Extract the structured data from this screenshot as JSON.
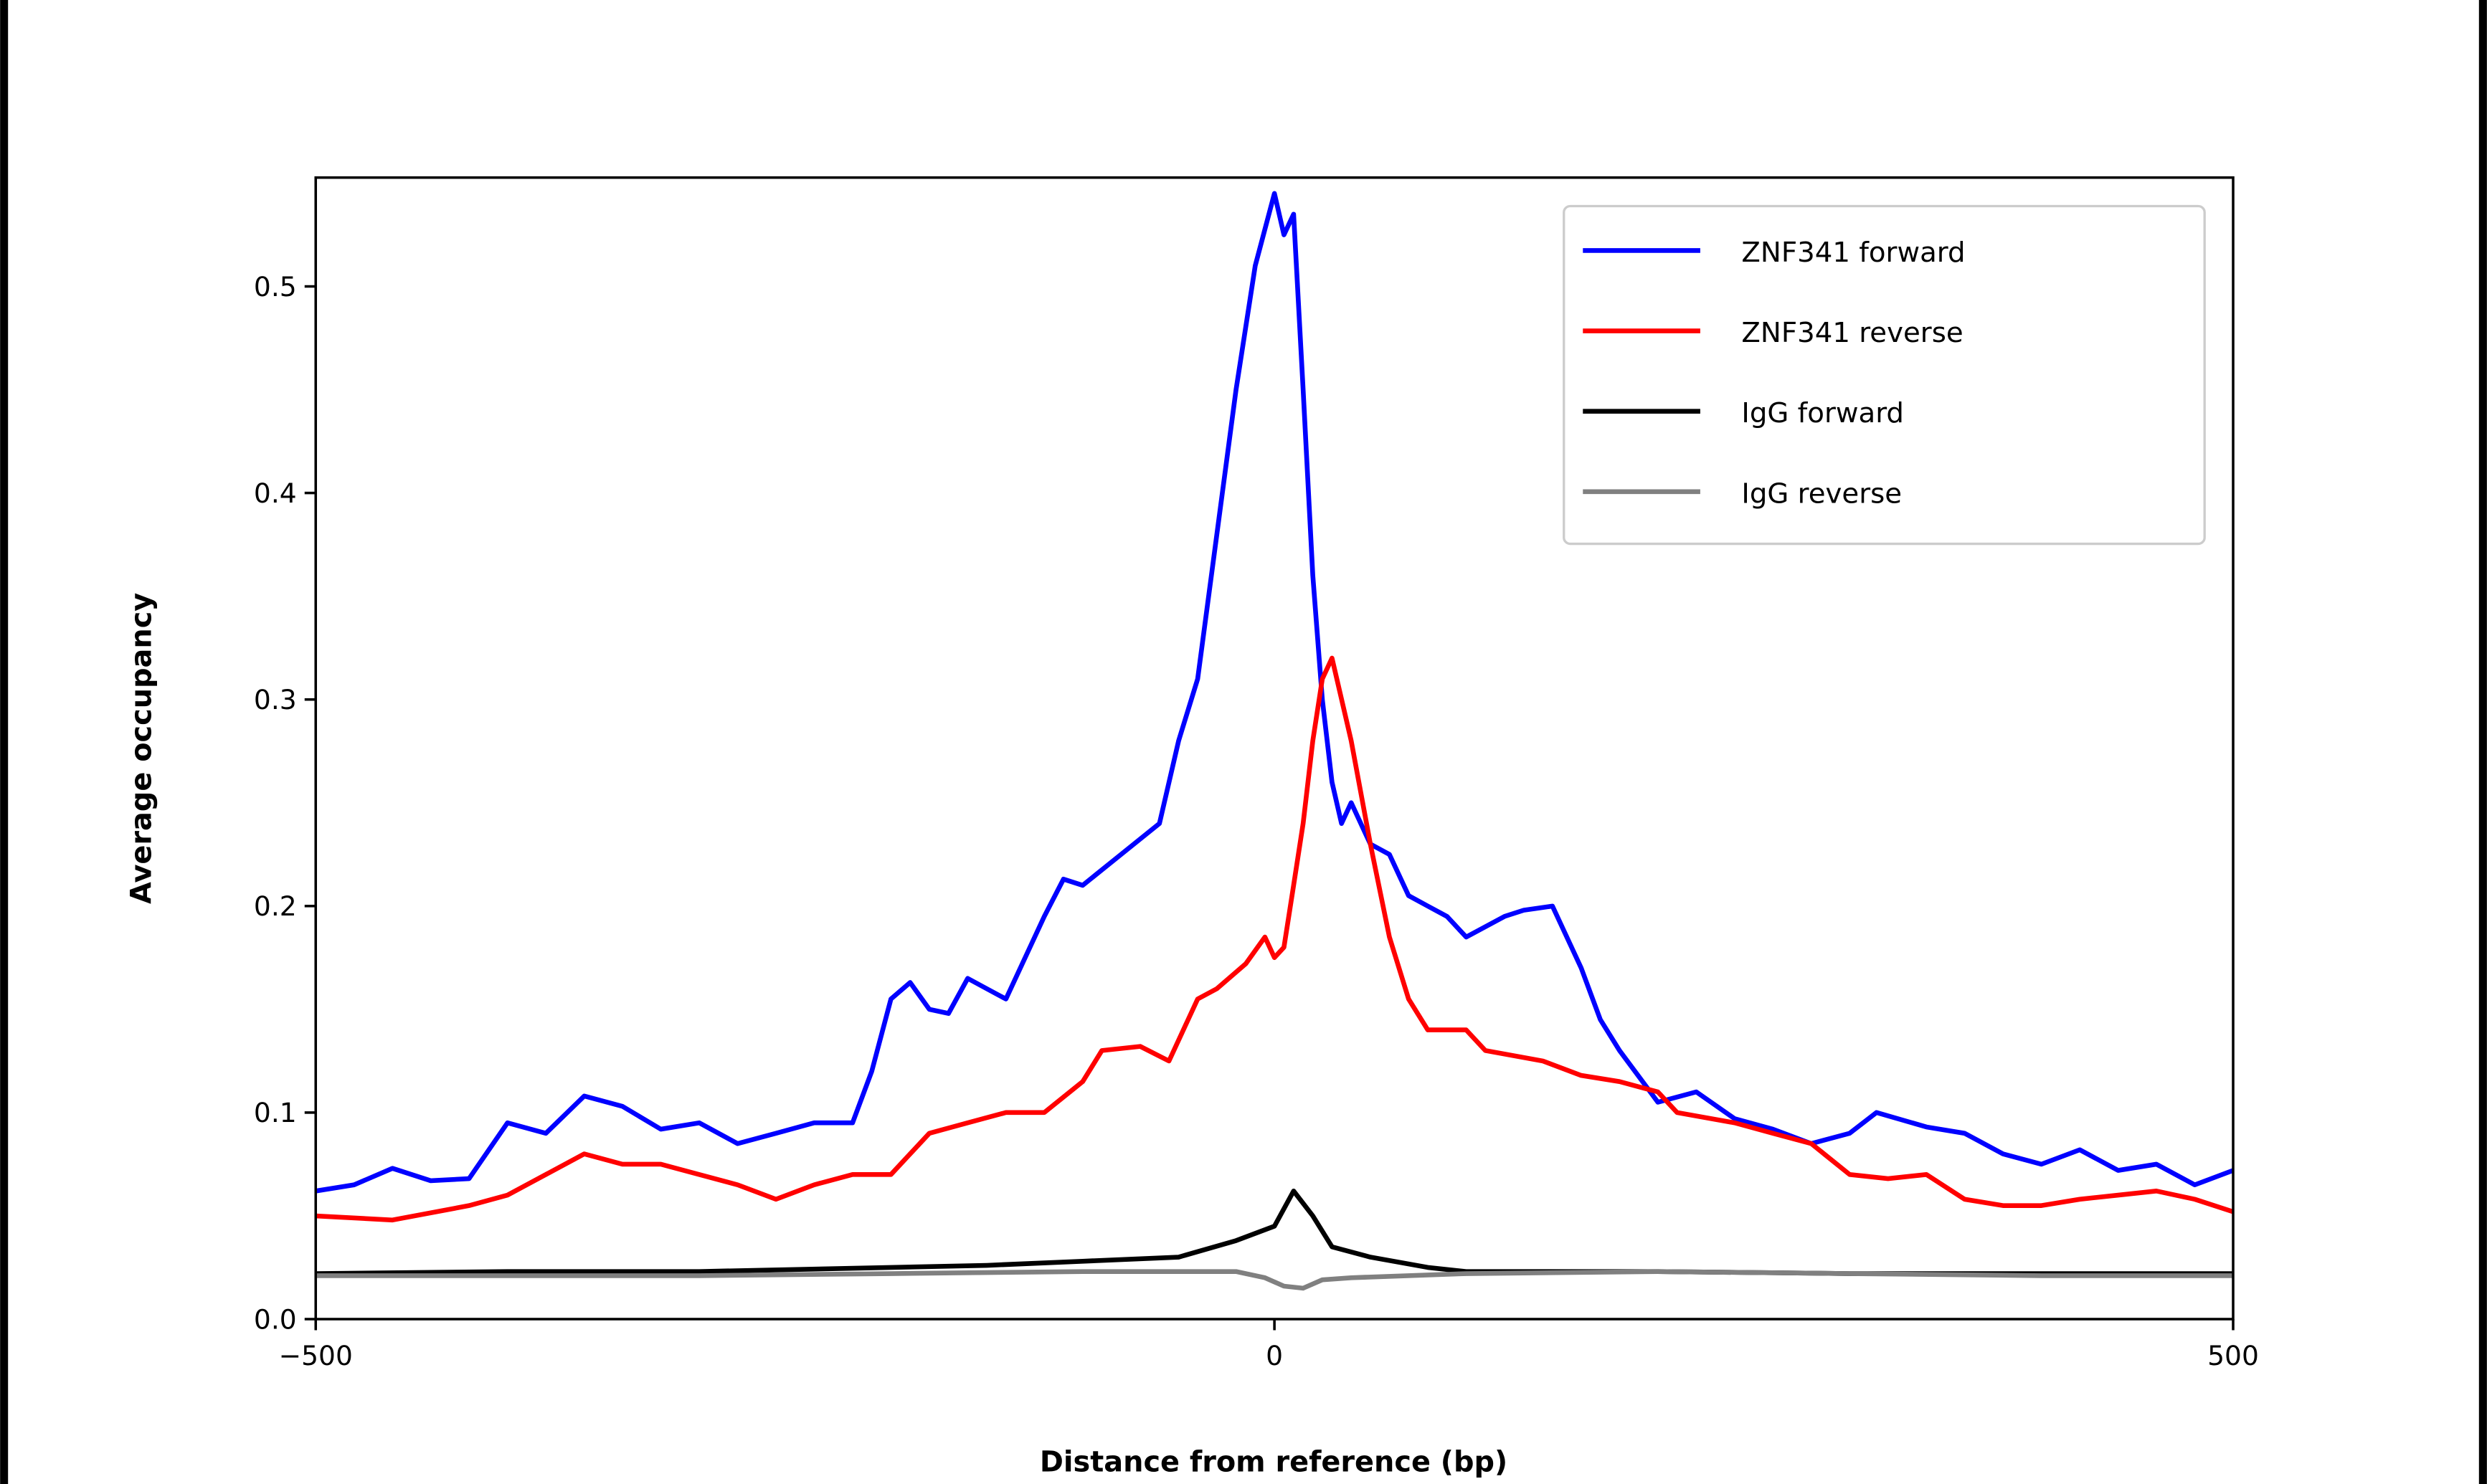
{
  "chart_data": {
    "type": "line",
    "title": "",
    "xlabel": "Distance from reference (bp)",
    "ylabel": "Average occupancy",
    "xlim": [
      -500,
      500
    ],
    "ylim": [
      0,
      0.55
    ],
    "xticks": [
      -500,
      0,
      500
    ],
    "xtick_labels": [
      "−500",
      "0",
      "500"
    ],
    "yticks": [
      0.0,
      0.1,
      0.2,
      0.3,
      0.4,
      0.5
    ],
    "ytick_labels": [
      "0.0",
      "0.1",
      "0.2",
      "0.3",
      "0.4",
      "0.5"
    ],
    "grid": false,
    "legend_position": "top-right",
    "series": [
      {
        "name": "ZNF341 forward",
        "color": "#0000ff",
        "x": [
          -500,
          -480,
          -460,
          -440,
          -420,
          -400,
          -380,
          -360,
          -340,
          -320,
          -300,
          -280,
          -260,
          -240,
          -220,
          -210,
          -200,
          -190,
          -180,
          -170,
          -160,
          -150,
          -140,
          -120,
          -110,
          -100,
          -80,
          -60,
          -50,
          -40,
          -30,
          -20,
          -10,
          0,
          5,
          10,
          15,
          20,
          25,
          30,
          35,
          40,
          50,
          60,
          70,
          80,
          90,
          100,
          110,
          120,
          130,
          145,
          160,
          170,
          180,
          200,
          220,
          240,
          260,
          280,
          300,
          314,
          340,
          360,
          380,
          400,
          420,
          440,
          460,
          480,
          500
        ],
        "y": [
          0.062,
          0.065,
          0.073,
          0.067,
          0.068,
          0.095,
          0.09,
          0.108,
          0.103,
          0.092,
          0.095,
          0.085,
          0.09,
          0.095,
          0.095,
          0.12,
          0.155,
          0.163,
          0.15,
          0.148,
          0.165,
          0.16,
          0.155,
          0.195,
          0.213,
          0.21,
          0.225,
          0.24,
          0.28,
          0.31,
          0.38,
          0.45,
          0.51,
          0.545,
          0.525,
          0.535,
          0.45,
          0.36,
          0.3,
          0.26,
          0.24,
          0.25,
          0.23,
          0.225,
          0.205,
          0.2,
          0.195,
          0.185,
          0.19,
          0.195,
          0.198,
          0.2,
          0.17,
          0.145,
          0.13,
          0.105,
          0.11,
          0.097,
          0.092,
          0.085,
          0.09,
          0.1,
          0.093,
          0.09,
          0.08,
          0.075,
          0.082,
          0.072,
          0.075,
          0.065,
          0.072
        ]
      },
      {
        "name": "ZNF341 reverse",
        "color": "#ff0000",
        "x": [
          -500,
          -460,
          -420,
          -400,
          -380,
          -360,
          -340,
          -320,
          -300,
          -280,
          -260,
          -240,
          -220,
          -200,
          -180,
          -160,
          -140,
          -120,
          -100,
          -90,
          -70,
          -55,
          -40,
          -30,
          -15,
          -5,
          0,
          5,
          10,
          15,
          20,
          25,
          30,
          40,
          50,
          60,
          70,
          80,
          100,
          110,
          140,
          160,
          180,
          200,
          210,
          240,
          260,
          280,
          300,
          320,
          340,
          360,
          380,
          400,
          420,
          440,
          460,
          480,
          500
        ],
        "y": [
          0.05,
          0.048,
          0.055,
          0.06,
          0.07,
          0.08,
          0.075,
          0.075,
          0.07,
          0.065,
          0.058,
          0.065,
          0.07,
          0.07,
          0.09,
          0.095,
          0.1,
          0.1,
          0.115,
          0.13,
          0.132,
          0.125,
          0.155,
          0.16,
          0.172,
          0.185,
          0.175,
          0.18,
          0.21,
          0.24,
          0.28,
          0.31,
          0.32,
          0.28,
          0.23,
          0.185,
          0.155,
          0.14,
          0.14,
          0.13,
          0.125,
          0.118,
          0.115,
          0.11,
          0.1,
          0.095,
          0.09,
          0.085,
          0.07,
          0.068,
          0.07,
          0.058,
          0.055,
          0.055,
          0.058,
          0.06,
          0.062,
          0.058,
          0.052
        ]
      },
      {
        "name": "IgG forward",
        "color": "#000000",
        "x": [
          -500,
          -400,
          -300,
          -200,
          -150,
          -100,
          -50,
          -20,
          0,
          10,
          20,
          30,
          50,
          80,
          100,
          200,
          300,
          400,
          500
        ],
        "y": [
          0.022,
          0.023,
          0.023,
          0.025,
          0.026,
          0.028,
          0.03,
          0.038,
          0.045,
          0.062,
          0.05,
          0.035,
          0.03,
          0.025,
          0.023,
          0.023,
          0.022,
          0.022,
          0.022
        ]
      },
      {
        "name": "IgG reverse",
        "color": "#808080",
        "x": [
          -500,
          -400,
          -300,
          -200,
          -100,
          -20,
          -5,
          5,
          15,
          25,
          40,
          100,
          200,
          300,
          400,
          500
        ],
        "y": [
          0.021,
          0.021,
          0.021,
          0.022,
          0.023,
          0.023,
          0.02,
          0.016,
          0.015,
          0.019,
          0.02,
          0.022,
          0.023,
          0.022,
          0.021,
          0.021
        ]
      }
    ]
  }
}
